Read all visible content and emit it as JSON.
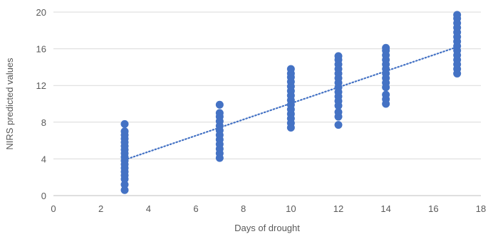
{
  "chart_data": {
    "type": "scatter",
    "title": "",
    "xlabel": "Days of drought",
    "ylabel": "NIRS predicted values",
    "xlim": [
      0,
      18
    ],
    "ylim": [
      0,
      20
    ],
    "xticks": [
      0,
      2,
      4,
      6,
      8,
      10,
      12,
      14,
      16,
      18
    ],
    "yticks": [
      0,
      4,
      8,
      12,
      16,
      20
    ],
    "x_tick_labels": [
      "0",
      "2",
      "4",
      "6",
      "8",
      "10",
      "12",
      "14",
      "16",
      "18"
    ],
    "y_tick_labels": [
      "0",
      "4",
      "8",
      "12",
      "16",
      "20"
    ],
    "grid": "horizontal",
    "legend": "none",
    "point_color": "#4472c4",
    "trendline": {
      "type": "linear",
      "style": "dotted",
      "color": "#4472c4",
      "x": [
        3,
        17
      ],
      "y": [
        3.9,
        16.2
      ]
    },
    "series": [
      {
        "points": [
          [
            3,
            0.6
          ],
          [
            3,
            1.2
          ],
          [
            3,
            1.8
          ],
          [
            3,
            2.2
          ],
          [
            3,
            2.6
          ],
          [
            3,
            3.0
          ],
          [
            3,
            3.4
          ],
          [
            3,
            3.8
          ],
          [
            3,
            4.2
          ],
          [
            3,
            4.6
          ],
          [
            3,
            5.0
          ],
          [
            3,
            5.4
          ],
          [
            3,
            5.8
          ],
          [
            3,
            6.2
          ],
          [
            3,
            6.6
          ],
          [
            3,
            7.0
          ],
          [
            3,
            7.8
          ],
          [
            7,
            4.1
          ],
          [
            7,
            4.6
          ],
          [
            7,
            5.1
          ],
          [
            7,
            5.6
          ],
          [
            7,
            6.1
          ],
          [
            7,
            6.6
          ],
          [
            7,
            7.1
          ],
          [
            7,
            7.6
          ],
          [
            7,
            8.1
          ],
          [
            7,
            8.6
          ],
          [
            7,
            9.0
          ],
          [
            7,
            9.9
          ],
          [
            10,
            7.4
          ],
          [
            10,
            7.9
          ],
          [
            10,
            8.4
          ],
          [
            10,
            8.9
          ],
          [
            10,
            9.4
          ],
          [
            10,
            9.9
          ],
          [
            10,
            10.4
          ],
          [
            10,
            10.9
          ],
          [
            10,
            11.4
          ],
          [
            10,
            11.9
          ],
          [
            10,
            12.4
          ],
          [
            10,
            12.9
          ],
          [
            10,
            13.3
          ],
          [
            10,
            13.8
          ],
          [
            12,
            7.7
          ],
          [
            12,
            8.6
          ],
          [
            12,
            9.1
          ],
          [
            12,
            9.8
          ],
          [
            12,
            10.3
          ],
          [
            12,
            10.8
          ],
          [
            12,
            11.3
          ],
          [
            12,
            11.8
          ],
          [
            12,
            12.3
          ],
          [
            12,
            12.8
          ],
          [
            12,
            13.3
          ],
          [
            12,
            13.8
          ],
          [
            12,
            14.3
          ],
          [
            12,
            14.8
          ],
          [
            12,
            15.2
          ],
          [
            14,
            10.0
          ],
          [
            14,
            10.5
          ],
          [
            14,
            11.0
          ],
          [
            14,
            11.8
          ],
          [
            14,
            12.3
          ],
          [
            14,
            12.8
          ],
          [
            14,
            13.3
          ],
          [
            14,
            13.8
          ],
          [
            14,
            14.3
          ],
          [
            14,
            14.8
          ],
          [
            14,
            15.3
          ],
          [
            14,
            15.8
          ],
          [
            14,
            16.1
          ],
          [
            17,
            13.3
          ],
          [
            17,
            13.8
          ],
          [
            17,
            14.3
          ],
          [
            17,
            14.8
          ],
          [
            17,
            15.3
          ],
          [
            17,
            15.8
          ],
          [
            17,
            16.3
          ],
          [
            17,
            16.8
          ],
          [
            17,
            17.3
          ],
          [
            17,
            17.8
          ],
          [
            17,
            18.3
          ],
          [
            17,
            18.8
          ],
          [
            17,
            19.3
          ],
          [
            17,
            19.7
          ]
        ]
      }
    ]
  }
}
